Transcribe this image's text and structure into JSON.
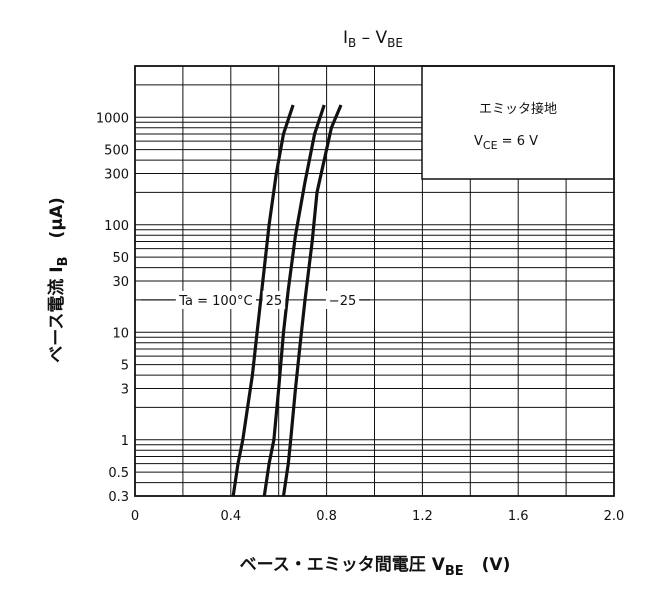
{
  "chart_data": {
    "type": "line",
    "title": "I",
    "title_sub1": "B",
    "title_mid": " – V",
    "title_sub2": "BE",
    "ylabel_main": "ベース電流   I",
    "ylabel_sub": "B",
    "ylabel_unit": "(μA)",
    "xlabel_main": "ベース・エミッタ間電圧   V",
    "xlabel_sub": "BE",
    "xlabel_unit": "(V)",
    "x_scale": "linear",
    "y_scale": "log",
    "xlim": [
      0,
      2.0
    ],
    "ylim": [
      0.3,
      3000
    ],
    "x_ticks": [
      0,
      0.4,
      0.8,
      1.2,
      1.6,
      2.0
    ],
    "x_tick_labels": [
      "0",
      "0.4",
      "0.8",
      "1.2",
      "1.6",
      "2.0"
    ],
    "y_ticks": [
      0.3,
      0.5,
      1,
      3,
      5,
      10,
      30,
      50,
      100,
      300,
      500,
      1000
    ],
    "y_tick_labels": [
      "0.3",
      "0.5",
      "1",
      "3",
      "5",
      "10",
      "30",
      "50",
      "100",
      "300",
      "500",
      "1000"
    ],
    "grid": true,
    "condition_box": {
      "line1": "エミッタ接地",
      "line2_main": "V",
      "line2_sub": "CE",
      "line2_rest": " = 6 V"
    },
    "series": [
      {
        "name": "Ta = 100°C",
        "points": [
          [
            0.41,
            0.3
          ],
          [
            0.43,
            0.6
          ],
          [
            0.45,
            1
          ],
          [
            0.47,
            2
          ],
          [
            0.49,
            4
          ],
          [
            0.51,
            10
          ],
          [
            0.53,
            25
          ],
          [
            0.56,
            100
          ],
          [
            0.59,
            300
          ],
          [
            0.62,
            700
          ],
          [
            0.66,
            1300
          ]
        ]
      },
      {
        "name": "25",
        "points": [
          [
            0.54,
            0.3
          ],
          [
            0.56,
            0.6
          ],
          [
            0.58,
            1
          ],
          [
            0.6,
            3
          ],
          [
            0.62,
            10
          ],
          [
            0.64,
            25
          ],
          [
            0.67,
            80
          ],
          [
            0.71,
            250
          ],
          [
            0.75,
            700
          ],
          [
            0.79,
            1300
          ]
        ]
      },
      {
        "name": "−25",
        "points": [
          [
            0.62,
            0.3
          ],
          [
            0.64,
            0.6
          ],
          [
            0.65,
            1
          ],
          [
            0.67,
            3
          ],
          [
            0.69,
            8
          ],
          [
            0.71,
            20
          ],
          [
            0.74,
            70
          ],
          [
            0.76,
            200
          ],
          [
            0.79,
            400
          ],
          [
            0.82,
            800
          ],
          [
            0.86,
            1300
          ]
        ]
      }
    ],
    "annotation_y": 20,
    "colors": {
      "line": "#111111",
      "grid": "#111111",
      "background": "#ffffff"
    }
  }
}
